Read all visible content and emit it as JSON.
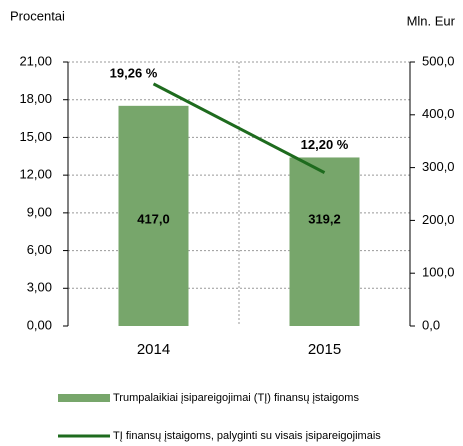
{
  "chart_data": {
    "type": "combo",
    "y_label": "Procentai",
    "y2_label": "Mln. Eur",
    "categories": [
      "2014",
      "2015"
    ],
    "series": [
      {
        "name": "Trumpalaikiai įsipareigojimai (TĮ) finansų įstaigoms",
        "type": "bar",
        "axis": "y2",
        "color": "#77a66b",
        "values": [
          417.0,
          319.2
        ],
        "value_labels": [
          "417,0",
          "319,2"
        ]
      },
      {
        "name": "TĮ finansų įstaigoms, palyginti su visais įsipareigojimais",
        "type": "line",
        "color": "#1e6b1e",
        "values": [
          19.26,
          12.2
        ],
        "value_labels": [
          "19,26 %",
          "12,20 %"
        ]
      }
    ],
    "ylim": [
      0,
      21
    ],
    "yticks": [
      {
        "value": 0,
        "label": "0,00"
      },
      {
        "value": 3,
        "label": "3,00"
      },
      {
        "value": 6,
        "label": "6,00"
      },
      {
        "value": 9,
        "label": "9,00"
      },
      {
        "value": 12,
        "label": "12,00"
      },
      {
        "value": 15,
        "label": "15,00"
      },
      {
        "value": 18,
        "label": "18,00"
      },
      {
        "value": 21,
        "label": "21,00"
      }
    ],
    "y2lim": [
      0,
      500
    ],
    "y2ticks": [
      {
        "value": 0,
        "label": "0,0"
      },
      {
        "value": 100,
        "label": "100,0"
      },
      {
        "value": 200,
        "label": "200,0"
      },
      {
        "value": 300,
        "label": "300,0"
      },
      {
        "value": 400,
        "label": "400,0"
      },
      {
        "value": 500,
        "label": "500,0"
      }
    ],
    "grid": true
  }
}
